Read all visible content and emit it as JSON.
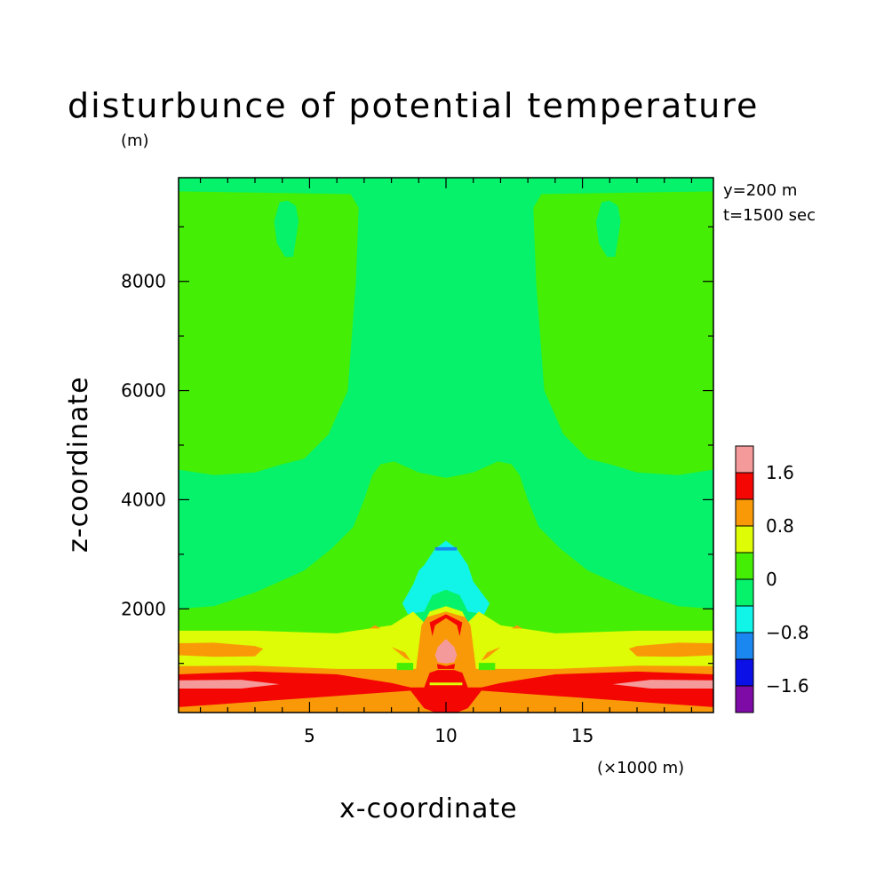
{
  "chart_data": {
    "type": "heatmap",
    "title": "disturbunce of potential temperature",
    "xlabel": "x-coordinate",
    "ylabel": "z-coordinate",
    "x_unit": "(×1000 m)",
    "z_unit": "(m)",
    "annotations": [
      "y=200 m",
      "t=1500 sec"
    ],
    "xlim": [
      0.2,
      19.8
    ],
    "ylim": [
      100,
      9900
    ],
    "x_ticks": [
      {
        "value": 5,
        "label": "5"
      },
      {
        "value": 10,
        "label": "10"
      },
      {
        "value": 15,
        "label": "15"
      }
    ],
    "y_ticks": [
      {
        "value": 2000,
        "label": "2000"
      },
      {
        "value": 4000,
        "label": "4000"
      },
      {
        "value": 6000,
        "label": "6000"
      },
      {
        "value": 8000,
        "label": "8000"
      }
    ],
    "colorbar": {
      "levels": [
        -2.0,
        -1.6,
        -1.2,
        -0.8,
        -0.4,
        0,
        0.4,
        0.8,
        1.2,
        1.6,
        2.0
      ],
      "colors": [
        "#7F0BA6",
        "#0A10E6",
        "#1A86F0",
        "#10F5E8",
        "#05F26A",
        "#45EE05",
        "#DDFC05",
        "#F99908",
        "#F40603",
        "#F59A9A"
      ],
      "tick_labels": [
        {
          "value": 1.6,
          "label": "1.6"
        },
        {
          "value": 0.8,
          "label": "0.8"
        },
        {
          "value": 0,
          "label": "0"
        },
        {
          "value": -0.8,
          "label": "−0.8"
        },
        {
          "value": -1.6,
          "label": "−1.6"
        }
      ]
    },
    "regions": [
      {
        "band": 4,
        "x": [
          0.2,
          19.8,
          19.8,
          0.2
        ],
        "z": [
          100,
          100,
          9900,
          9900
        ]
      },
      {
        "band": 5,
        "x": [
          0.2,
          6.5,
          6.8,
          6.7,
          6.4,
          5.7,
          4.8,
          4.0,
          3.0,
          1.5,
          0.2
        ],
        "z": [
          9650,
          9600,
          9350,
          8000,
          6000,
          5200,
          4750,
          4650,
          4500,
          4450,
          4550
        ]
      },
      {
        "band": 5,
        "x": [
          19.8,
          13.5,
          13.2,
          13.3,
          13.6,
          14.3,
          15.2,
          16.0,
          17.0,
          18.5,
          19.8
        ],
        "z": [
          9650,
          9600,
          9350,
          8000,
          6000,
          5200,
          4750,
          4650,
          4500,
          4450,
          4550
        ]
      },
      {
        "band": 4,
        "x": [
          3.9,
          4.2,
          4.5,
          4.6,
          4.4,
          4.1,
          3.8,
          3.7
        ],
        "z": [
          9450,
          9480,
          9380,
          9100,
          8450,
          8450,
          8700,
          9100
        ]
      },
      {
        "band": 4,
        "x": [
          15.7,
          16.0,
          16.3,
          16.4,
          16.2,
          15.9,
          15.6,
          15.5
        ],
        "z": [
          9450,
          9480,
          9380,
          9100,
          8450,
          8450,
          8700,
          9100
        ]
      },
      {
        "band": 5,
        "x": [
          0.2,
          1.5,
          3.0,
          4.8,
          5.8,
          6.6,
          7.0,
          7.3,
          7.6,
          8.1,
          9.0,
          10.0,
          11.0,
          11.9,
          12.4,
          12.7,
          13.0,
          13.4,
          14.2,
          15.2,
          17.0,
          18.5,
          19.8,
          19.8,
          0.2
        ],
        "z": [
          2000,
          2050,
          2300,
          2700,
          3100,
          3500,
          4000,
          4450,
          4650,
          4700,
          4500,
          4400,
          4500,
          4700,
          4650,
          4450,
          4000,
          3500,
          3100,
          2700,
          2300,
          2050,
          2000,
          100,
          100
        ]
      },
      {
        "band": 4,
        "x": [
          8.5,
          9.0,
          9.4,
          10.0,
          10.6,
          11.0,
          11.5,
          11.7,
          11.3,
          10.0,
          8.7,
          8.3
        ],
        "z": [
          1700,
          2300,
          2900,
          3250,
          2900,
          2300,
          1700,
          1500,
          1300,
          1200,
          1300,
          1500
        ]
      },
      {
        "band": 3,
        "x": [
          9.2,
          9.6,
          10.0,
          10.4,
          10.8,
          11.0,
          11.6,
          11.4,
          10.8,
          10.5,
          10.0,
          9.5,
          9.2,
          8.6,
          8.4,
          8.8,
          9.0
        ],
        "z": [
          2800,
          3100,
          3250,
          3100,
          2800,
          2500,
          2100,
          1900,
          1950,
          2250,
          2350,
          2250,
          1950,
          1900,
          2100,
          2450,
          2700
        ]
      },
      {
        "band": 2,
        "x": [
          9.6,
          10.4,
          10.4,
          9.6
        ],
        "z": [
          3130,
          3130,
          3070,
          3070
        ]
      },
      {
        "band": 6,
        "x": [
          0.2,
          3.0,
          6.0,
          8.0,
          8.8,
          9.2,
          9.4,
          10.0,
          10.6,
          10.8,
          11.2,
          12.0,
          14.0,
          17.0,
          19.8,
          19.8,
          0.2
        ],
        "z": [
          1600,
          1600,
          1550,
          1700,
          1950,
          1750,
          1950,
          2050,
          1950,
          1750,
          1950,
          1700,
          1550,
          1600,
          1600,
          100,
          100
        ]
      },
      {
        "band": 7,
        "x": [
          0.2,
          3.0,
          6.0,
          7.8,
          8.9,
          9.1,
          9.3,
          10.0,
          10.7,
          10.9,
          11.1,
          12.2,
          14.0,
          17.0,
          19.8,
          19.8,
          0.2
        ],
        "z": [
          950,
          960,
          900,
          900,
          900,
          1700,
          1850,
          1950,
          1850,
          1700,
          900,
          900,
          900,
          960,
          950,
          100,
          100
        ]
      },
      {
        "band": 7,
        "x": [
          0.2,
          1.5,
          3.0,
          3.3,
          3.0,
          1.5,
          0.2
        ],
        "z": [
          1370,
          1380,
          1320,
          1270,
          1130,
          1120,
          1150
        ]
      },
      {
        "band": 7,
        "x": [
          19.8,
          18.5,
          17.0,
          16.7,
          17.0,
          18.5,
          19.8
        ],
        "z": [
          1370,
          1380,
          1320,
          1270,
          1130,
          1120,
          1150
        ]
      },
      {
        "band": 8,
        "x": [
          0.2,
          3.0,
          6.0,
          8.0,
          8.7,
          9.2,
          9.4,
          9.7,
          10.0,
          10.3,
          10.6,
          10.8,
          11.3,
          12.0,
          14.0,
          17.0,
          19.8,
          19.8,
          11.3,
          10.8,
          10.4,
          9.6,
          9.2,
          8.7,
          0.2
        ],
        "z": [
          800,
          850,
          800,
          640,
          560,
          560,
          830,
          880,
          880,
          880,
          830,
          560,
          560,
          640,
          800,
          850,
          800,
          200,
          500,
          180,
          100,
          100,
          180,
          500,
          200
        ]
      },
      {
        "band": 9,
        "x": [
          0.2,
          2.5,
          3.9,
          2.5,
          0.2
        ],
        "z": [
          690,
          700,
          620,
          540,
          540
        ]
      },
      {
        "band": 9,
        "x": [
          19.8,
          17.5,
          16.1,
          17.5,
          19.8
        ],
        "z": [
          690,
          700,
          620,
          540,
          540
        ]
      },
      {
        "band": 6,
        "x": [
          9.4,
          10.6,
          10.6,
          9.4
        ],
        "z": [
          650,
          650,
          600,
          600
        ]
      },
      {
        "band": 7,
        "x": [
          9.5,
          10.0,
          10.5,
          10.7,
          10.7,
          10.5,
          10.0,
          9.5,
          9.3,
          9.3
        ],
        "z": [
          1600,
          1750,
          1600,
          1400,
          1100,
          950,
          880,
          950,
          1100,
          1400
        ]
      },
      {
        "band": 8,
        "x": [
          9.4,
          10.0,
          10.6,
          10.5,
          10.3,
          9.7,
          9.5
        ],
        "z": [
          1750,
          1900,
          1750,
          1500,
          900,
          900,
          1500
        ]
      },
      {
        "band": 7,
        "x": [
          9.6,
          10.0,
          10.4,
          10.55,
          10.4,
          10.0,
          9.6,
          9.45
        ],
        "z": [
          1700,
          1830,
          1700,
          1400,
          1000,
          950,
          1000,
          1400
        ]
      },
      {
        "band": 9,
        "x": [
          9.7,
          10.0,
          10.3,
          10.4,
          10.3,
          10.0,
          9.7,
          9.6
        ],
        "z": [
          1300,
          1450,
          1300,
          1150,
          1020,
          1000,
          1020,
          1150
        ]
      },
      {
        "band": 7,
        "x": [
          8.0,
          8.5,
          8.7,
          8.5
        ],
        "z": [
          1300,
          1200,
          1050,
          1100
        ]
      },
      {
        "band": 7,
        "x": [
          12.0,
          11.5,
          11.3,
          11.5
        ],
        "z": [
          1300,
          1200,
          1050,
          1100
        ]
      },
      {
        "band": 5,
        "x": [
          8.2,
          8.8,
          8.8,
          8.2
        ],
        "z": [
          1010,
          1010,
          880,
          880
        ]
      },
      {
        "band": 5,
        "x": [
          11.2,
          11.8,
          11.8,
          11.2
        ],
        "z": [
          1010,
          1010,
          880,
          880
        ]
      },
      {
        "band": 7,
        "x": [
          7.2,
          7.4,
          7.6
        ],
        "z": [
          1640,
          1700,
          1640
        ]
      },
      {
        "band": 7,
        "x": [
          12.4,
          12.6,
          12.8
        ],
        "z": [
          1640,
          1700,
          1640
        ]
      }
    ]
  }
}
